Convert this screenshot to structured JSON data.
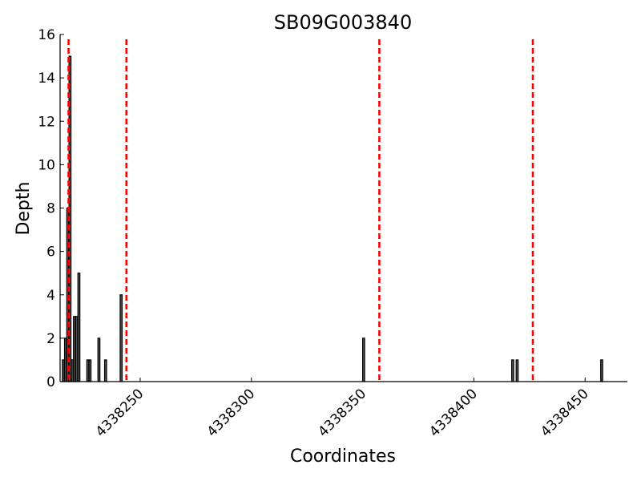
{
  "chart_data": {
    "type": "bar",
    "title": "SB09G003840",
    "xlabel": "Coordinates",
    "ylabel": "Depth",
    "xlim": [
      4338214,
      4338469
    ],
    "ylim": [
      0,
      16
    ],
    "xticks": [
      4338250,
      4338300,
      4338350,
      4338400,
      4338450
    ],
    "yticks": [
      0,
      2,
      4,
      6,
      8,
      10,
      12,
      14,
      16
    ],
    "bar_color": "#000000",
    "bar_edge_color": "#000000",
    "marker_color": "#ff0000",
    "series": [
      {
        "x": [
          4338215,
          4338216,
          4338217,
          4338218,
          4338219,
          4338220,
          4338221,
          4338222,
          4338223,
          4338226,
          4338227,
          4338231,
          4338234,
          4338241,
          4338350,
          4338417,
          4338419,
          4338457
        ],
        "values": [
          1,
          2,
          8,
          15,
          1,
          3,
          3,
          5,
          0,
          1,
          1,
          2,
          1,
          4,
          2,
          1,
          1,
          1
        ]
      }
    ],
    "vlines": [
      4338217.8,
      4338243.8,
      4338357.5,
      4338426.5
    ]
  }
}
